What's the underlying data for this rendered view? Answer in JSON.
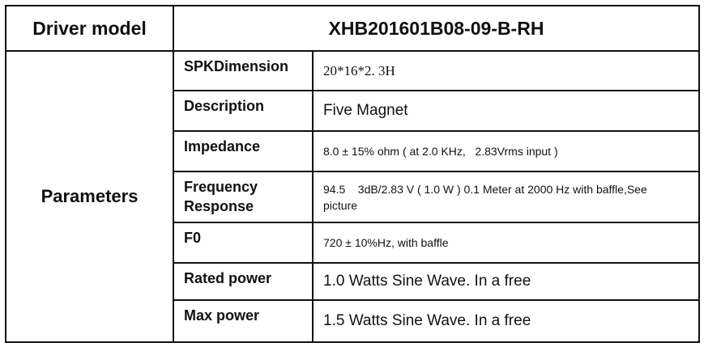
{
  "header": {
    "label": "Driver model",
    "model": "XHB201601B08-09-B-RH"
  },
  "group_label": "Parameters",
  "rows": [
    {
      "label": "SPKDimension",
      "value": "20*16*2. 3H"
    },
    {
      "label": "Description",
      "value": "Five Magnet"
    },
    {
      "label": "Impedance",
      "value": "8.0 ± 15% ohm ( at 2.0 KHz,   2.83Vrms input )"
    },
    {
      "label": "Frequency Response",
      "value": "94.5    3dB/2.83 V ( 1.0 W ) 0.1 Meter at 2000 Hz with baffle,See picture"
    },
    {
      "label": "F0",
      "value": "720 ± 10%Hz, with baffle"
    },
    {
      "label": "Rated power",
      "value": "1.0 Watts Sine Wave. In a free"
    },
    {
      "label": "Max power",
      "value": "1.5 Watts Sine Wave. In a free"
    }
  ]
}
